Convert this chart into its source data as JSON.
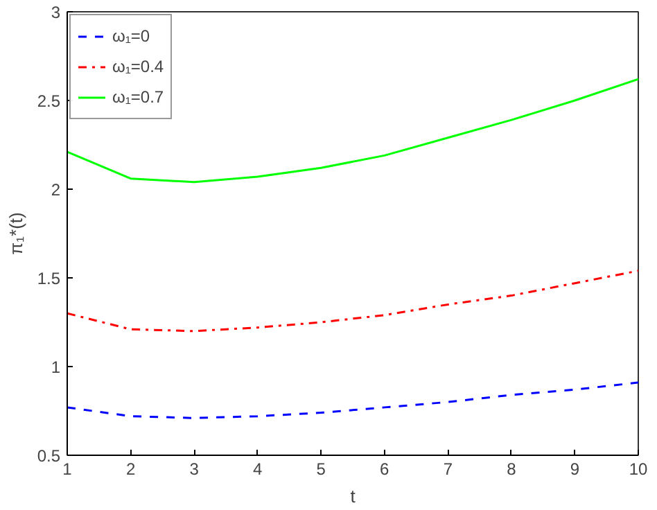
{
  "chart_data": {
    "type": "line",
    "xlabel": "t",
    "ylabel": "π₁*(t)",
    "x": [
      1,
      2,
      3,
      4,
      5,
      6,
      7,
      8,
      9,
      10
    ],
    "series": [
      {
        "name": "ω₁=0",
        "color": "#0000ff",
        "line_style": "dashed",
        "values": [
          0.77,
          0.72,
          0.71,
          0.72,
          0.74,
          0.77,
          0.8,
          0.84,
          0.87,
          0.91
        ]
      },
      {
        "name": "ω₁=0.4",
        "color": "#ff0000",
        "line_style": "dashdot",
        "values": [
          1.3,
          1.21,
          1.2,
          1.22,
          1.25,
          1.29,
          1.35,
          1.4,
          1.47,
          1.54
        ]
      },
      {
        "name": "ω₁=0.7",
        "color": "#00ff00",
        "line_style": "solid",
        "values": [
          2.21,
          2.06,
          2.04,
          2.07,
          2.12,
          2.19,
          2.29,
          2.39,
          2.5,
          2.62
        ]
      }
    ],
    "xlim": [
      1,
      10
    ],
    "xticks": [
      1,
      2,
      3,
      4,
      5,
      6,
      7,
      8,
      9,
      10
    ],
    "ylim": [
      0.5,
      3
    ],
    "yticks": [
      0.5,
      1,
      1.5,
      2,
      2.5,
      3
    ],
    "grid": false,
    "legend": "top left"
  }
}
